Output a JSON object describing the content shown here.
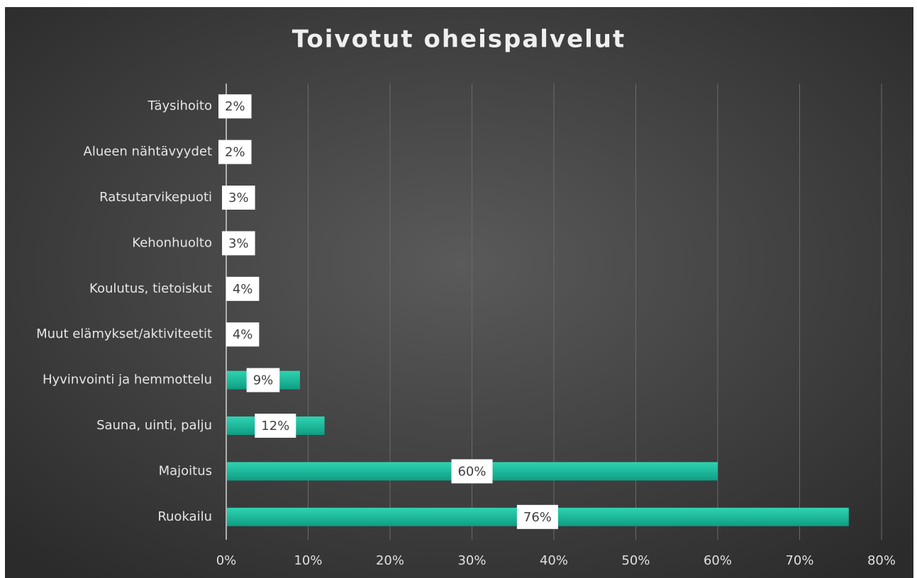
{
  "chart_data": {
    "type": "bar",
    "orientation": "horizontal",
    "title": "Toivotut oheispalvelut",
    "categories": [
      "Täysihoito",
      "Alueen nähtävyydet",
      "Ratsutarvikepuoti",
      "Kehonhuolto",
      "Koulutus, tietoiskut",
      "Muut elämykset/aktiviteetit",
      "Hyvinvointi ja hemmottelu",
      "Sauna, uinti, palju",
      "Majoitus",
      "Ruokailu"
    ],
    "values": [
      2,
      2,
      3,
      3,
      4,
      4,
      9,
      12,
      60,
      76
    ],
    "value_labels": [
      "2%",
      "2%",
      "3%",
      "3%",
      "4%",
      "4%",
      "9%",
      "12%",
      "60%",
      "76%"
    ],
    "color": "#15b597",
    "xlim": [
      0,
      80
    ],
    "xticks": [
      {
        "value": 0,
        "label": "0%"
      },
      {
        "value": 10,
        "label": "10%"
      },
      {
        "value": 20,
        "label": "20%"
      },
      {
        "value": 30,
        "label": "30%"
      },
      {
        "value": 40,
        "label": "40%"
      },
      {
        "value": 50,
        "label": "50%"
      },
      {
        "value": 60,
        "label": "60%"
      },
      {
        "value": 70,
        "label": "70%"
      },
      {
        "value": 80,
        "label": "80%"
      }
    ],
    "grid": true
  }
}
